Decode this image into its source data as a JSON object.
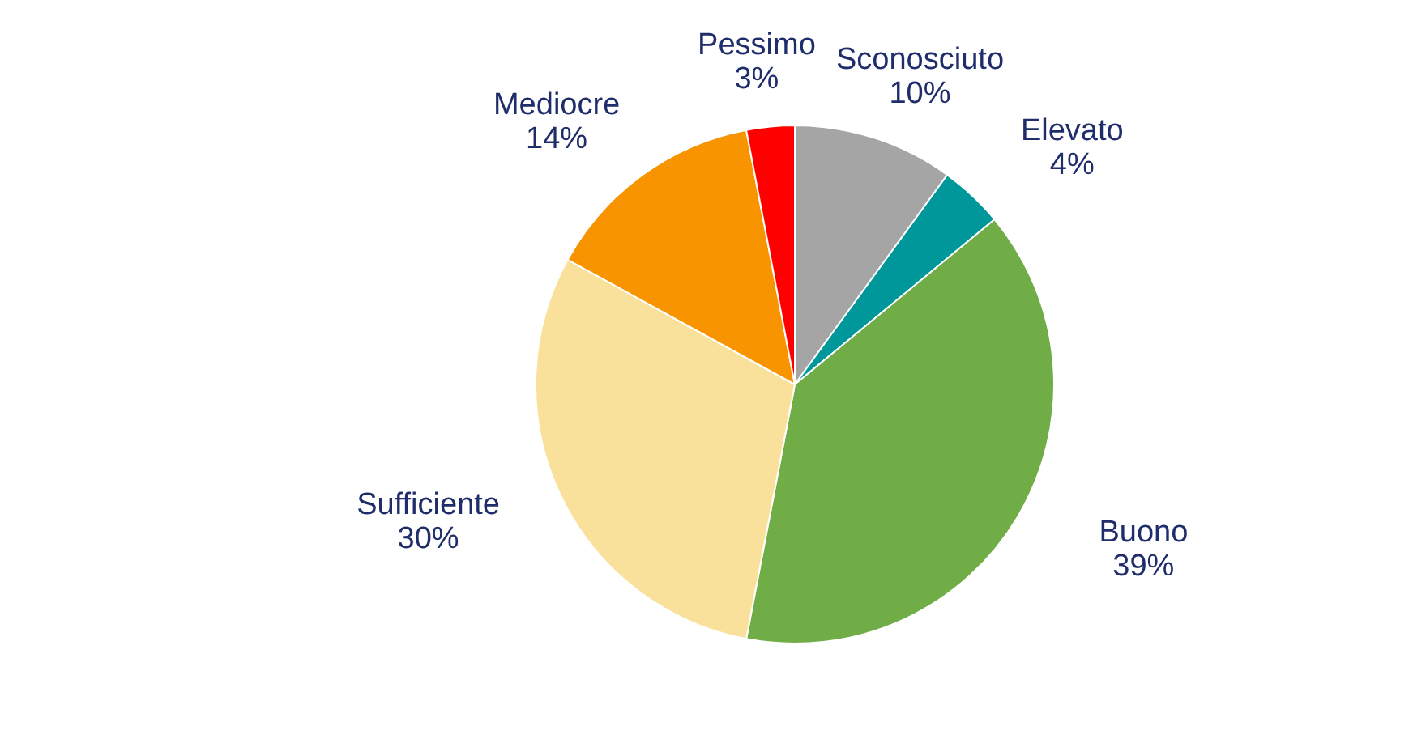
{
  "chart_data": {
    "type": "pie",
    "categories": [
      "Sconosciuto",
      "Elevato",
      "Buono",
      "Sufficiente",
      "Mediocre",
      "Pessimo"
    ],
    "values": [
      10,
      4,
      39,
      30,
      14,
      3
    ],
    "value_labels": [
      "10%",
      "4%",
      "39%",
      "30%",
      "14%",
      "3%"
    ],
    "colors": [
      "#a5a5a5",
      "#00979a",
      "#70ad47",
      "#f9e09b",
      "#f79400",
      "#ff0000"
    ]
  }
}
